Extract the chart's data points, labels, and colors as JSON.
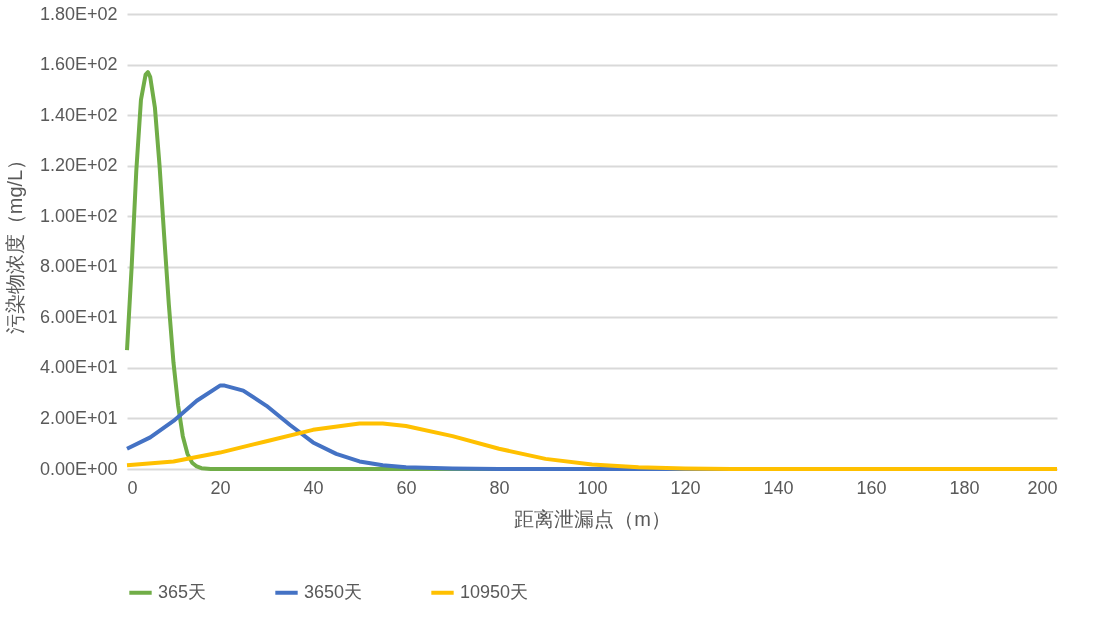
{
  "chart_data": {
    "type": "line",
    "xlabel": "距离泄漏点（m）",
    "ylabel": "污染物浓度（mg/L）",
    "xlim": [
      0,
      200
    ],
    "xticks": [
      0,
      20,
      40,
      60,
      80,
      100,
      120,
      140,
      160,
      180,
      200
    ],
    "ylim": [
      0,
      180
    ],
    "yticks": [
      {
        "value": 0,
        "label": "0.00E+00"
      },
      {
        "value": 20,
        "label": "2.00E+01"
      },
      {
        "value": 40,
        "label": "4.00E+01"
      },
      {
        "value": 60,
        "label": "6.00E+01"
      },
      {
        "value": 80,
        "label": "8.00E+01"
      },
      {
        "value": 100,
        "label": "1.00E+02"
      },
      {
        "value": 120,
        "label": "1.20E+02"
      },
      {
        "value": 140,
        "label": "1.40E+02"
      },
      {
        "value": 160,
        "label": "1.60E+02"
      },
      {
        "value": 180,
        "label": "1.80E+02"
      }
    ],
    "grid": "y",
    "legend": "bottom",
    "marker": "none",
    "line_style": "solid",
    "series": [
      {
        "name": "365天",
        "color": "#70ad47",
        "x": [
          0,
          1,
          2,
          3,
          4,
          4.5,
          5,
          6,
          7,
          8,
          9,
          10,
          11,
          12,
          13,
          14,
          15,
          16,
          18,
          200
        ],
        "values": [
          47,
          80,
          118,
          146,
          156,
          157,
          155,
          143,
          120,
          92,
          65,
          42,
          25,
          13,
          6,
          2.5,
          1,
          0.3,
          0,
          0
        ]
      },
      {
        "name": "3650天",
        "color": "#4472c4",
        "x": [
          0,
          5,
          10,
          15,
          20,
          21,
          25,
          30,
          35,
          40,
          45,
          50,
          55,
          60,
          70,
          80,
          200
        ],
        "values": [
          8,
          12.5,
          19,
          27,
          33,
          33,
          31,
          25,
          17.5,
          10.5,
          6,
          3,
          1.5,
          0.7,
          0.2,
          0,
          0
        ]
      },
      {
        "name": "10950天",
        "color": "#ffc000",
        "x": [
          0,
          10,
          20,
          30,
          40,
          50,
          55,
          60,
          70,
          80,
          90,
          100,
          110,
          120,
          130,
          200
        ],
        "values": [
          1.5,
          3,
          6.5,
          11,
          15.5,
          18,
          18,
          17,
          13,
          8,
          4,
          1.8,
          0.7,
          0.2,
          0,
          0
        ]
      }
    ]
  }
}
